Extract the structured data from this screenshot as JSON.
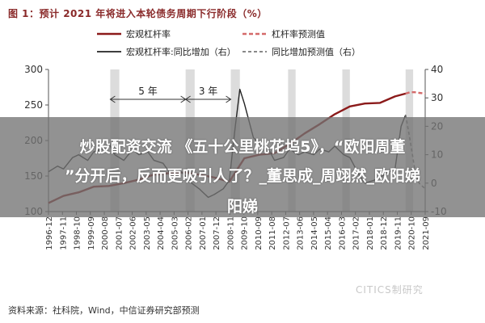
{
  "header": {
    "title": "图 1：预计 2021 年将进入本轮债务周期下行阶段（%）"
  },
  "footer": {
    "source": "资料来源：社科院，Wind，中信证券研究部预测"
  },
  "watermark": {
    "text": "CITICS制研究"
  },
  "overlay": {
    "line1": "炒股配资交流 《五十公里桃花坞5》，“欧阳周董",
    "line2": "”分开后，反而更吸引人了？_董思成_周翊然_欧阳娣",
    "line3": "阳娣"
  },
  "colors": {
    "leverage": "#8b1a1a",
    "yoy": "#222222",
    "forecast": "#d46a6a",
    "shade": "#d3d3d3",
    "overlay": "#737373"
  },
  "chart_data": {
    "type": "line",
    "legend": {
      "placement": "top",
      "entries": [
        "宏观杠杆率",
        "杠杆率预测值",
        "宏观杠杆率:同比增加（右）",
        "同比增加预测值（右）"
      ]
    },
    "x_ticks": [
      "1996-12",
      "1997-11",
      "1998-10",
      "1999-09",
      "2000-08",
      "2001-07",
      "2002-06",
      "2003-05",
      "2004-04",
      "2005-03",
      "2006-02",
      "2007-01",
      "2007-12",
      "2008-11",
      "2009-10",
      "2010-09",
      "2011-08",
      "2012-07",
      "2013-06",
      "2014-05",
      "2015-04",
      "2016-03",
      "2017-02",
      "2018-01",
      "2018-12",
      "2019-11",
      "2020-10",
      "2021-09"
    ],
    "y_left": {
      "ticks": [
        100,
        150,
        200,
        250,
        300
      ],
      "range": [
        100,
        300
      ]
    },
    "y_right": {
      "ticks": [
        -10,
        0,
        10,
        20,
        30,
        40
      ],
      "range": [
        -10,
        40
      ]
    },
    "annotations": [
      {
        "text": "5 年",
        "x_start": 2001.0,
        "x_end": 2006.0
      },
      {
        "text": "3 年",
        "x_start": 2006.0,
        "x_end": 2009.0
      }
    ],
    "shaded_periods": [
      {
        "start": 2001.0,
        "end": 2001.6
      },
      {
        "start": 2006.0,
        "end": 2006.6
      },
      {
        "start": 2009.0,
        "end": 2009.6
      },
      {
        "start": 2012.8,
        "end": 2013.3
      },
      {
        "start": 2016.4,
        "end": 2016.9
      },
      {
        "start": 2020.6,
        "end": 2021.1
      }
    ],
    "series": [
      {
        "name": "宏观杠杆率",
        "axis": "left",
        "style": "solid",
        "x": [
          1996.9,
          1997.9,
          1998.9,
          1999.9,
          2000.9,
          2001.9,
          2002.9,
          2003.9,
          2004.9,
          2005.9,
          2006.9,
          2007.9,
          2008.9,
          2009.9,
          2010.9,
          2011.9,
          2012.9,
          2013.9,
          2014.9,
          2015.9,
          2016.9,
          2017.9,
          2018.9,
          2019.9,
          2020.6
        ],
        "values": [
          112,
          122,
          127,
          135,
          136,
          140,
          145,
          152,
          154,
          155,
          152,
          148,
          142,
          175,
          180,
          182,
          195,
          210,
          223,
          237,
          248,
          252,
          253,
          262,
          266
        ]
      },
      {
        "name": "杠杆率预测值",
        "axis": "left",
        "style": "dashed",
        "x": [
          2020.6,
          2020.9,
          2021.2,
          2021.5,
          2021.9
        ],
        "values": [
          266,
          268,
          268,
          267,
          266
        ]
      },
      {
        "name": "宏观杠杆率:同比增加（右）",
        "axis": "right",
        "style": "solid",
        "x": [
          1996.9,
          1997.5,
          1997.9,
          1998.5,
          1998.9,
          1999.5,
          1999.9,
          2000.5,
          2000.9,
          2001.3,
          2001.9,
          2002.5,
          2002.9,
          2003.5,
          2003.9,
          2004.5,
          2004.9,
          2005.5,
          2005.9,
          2006.4,
          2006.9,
          2007.5,
          2007.9,
          2008.5,
          2008.9,
          2009.3,
          2009.6,
          2009.9,
          2010.5,
          2010.9,
          2011.5,
          2011.9,
          2012.5,
          2012.9,
          2013.5,
          2013.9,
          2014.5,
          2014.9,
          2015.5,
          2015.9,
          2016.5,
          2016.9,
          2017.5,
          2017.9,
          2018.5,
          2018.9,
          2019.5,
          2019.9,
          2020.3,
          2020.6
        ],
        "values": [
          4,
          6,
          5,
          9,
          10,
          8,
          11,
          12,
          14,
          10,
          8,
          12,
          10,
          11,
          8,
          7,
          4,
          5,
          3,
          0,
          -2,
          -5,
          -4,
          -2,
          1,
          20,
          33,
          28,
          16,
          14,
          12,
          8,
          9,
          12,
          10,
          11,
          10,
          12,
          11,
          13,
          10,
          9,
          3,
          0,
          1,
          2,
          4,
          5,
          20,
          24
        ]
      },
      {
        "name": "同比增加预测值（右）",
        "axis": "right",
        "style": "dashed",
        "x": [
          2020.6,
          2020.9,
          2021.2,
          2021.5,
          2021.9
        ],
        "values": [
          24,
          15,
          5,
          0,
          -2
        ]
      }
    ]
  }
}
